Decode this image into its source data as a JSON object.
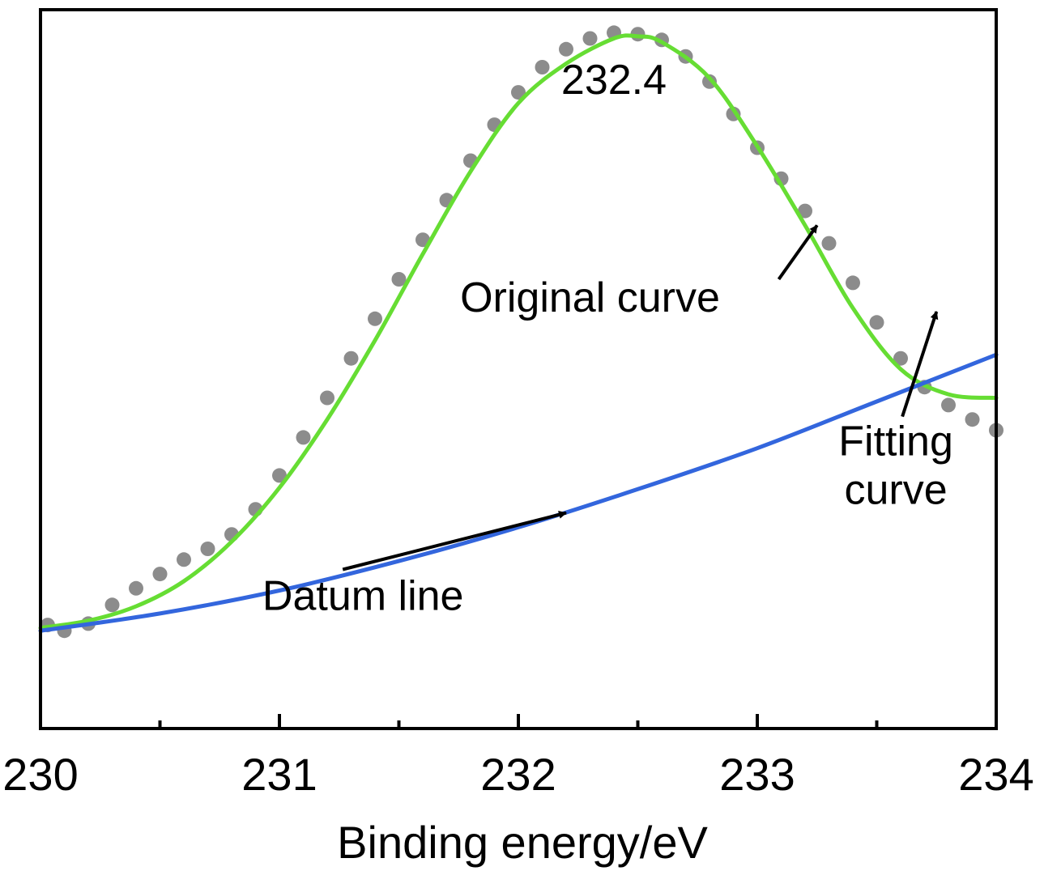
{
  "chart_data": {
    "type": "line",
    "title": "",
    "xlabel": "Binding energy/eV",
    "ylabel": "",
    "xlim": [
      230,
      234
    ],
    "ylim": [
      0,
      100
    ],
    "x_ticks": [
      "230",
      "231",
      "232",
      "233",
      "234"
    ],
    "x_minor_ticks": [
      230.5,
      231.5,
      232.5,
      233.5
    ],
    "y_tick_labels_shown": false,
    "grid": false,
    "legend": "none",
    "colors": {
      "original": "#8c8c8c",
      "fitting": "#66dd33",
      "datum": "#3366dd",
      "text": "#000000"
    },
    "series": [
      {
        "role": "original",
        "style": "markers",
        "points": [
          [
            230.03,
            14.4
          ],
          [
            230.1,
            13.6
          ],
          [
            230.2,
            14.6
          ],
          [
            230.3,
            17.2
          ],
          [
            230.4,
            19.5
          ],
          [
            230.5,
            21.5
          ],
          [
            230.6,
            23.5
          ],
          [
            230.7,
            25.0
          ],
          [
            230.8,
            27.0
          ],
          [
            230.9,
            30.5
          ],
          [
            231.0,
            35.2
          ],
          [
            231.1,
            40.5
          ],
          [
            231.2,
            46.0
          ],
          [
            231.3,
            51.5
          ],
          [
            231.4,
            57.0
          ],
          [
            231.5,
            62.5
          ],
          [
            231.6,
            68.0
          ],
          [
            231.7,
            73.5
          ],
          [
            231.8,
            79.0
          ],
          [
            231.9,
            84.0
          ],
          [
            232.0,
            88.5
          ],
          [
            232.1,
            92.0
          ],
          [
            232.2,
            94.5
          ],
          [
            232.3,
            96.0
          ],
          [
            232.4,
            96.8
          ],
          [
            232.5,
            96.6
          ],
          [
            232.6,
            95.8
          ],
          [
            232.7,
            93.5
          ],
          [
            232.8,
            90.0
          ],
          [
            232.9,
            85.5
          ],
          [
            233.0,
            80.8
          ],
          [
            233.1,
            76.5
          ],
          [
            233.2,
            72.0
          ],
          [
            233.3,
            67.5
          ],
          [
            233.4,
            62.0
          ],
          [
            233.5,
            56.5
          ],
          [
            233.6,
            51.5
          ],
          [
            233.7,
            47.5
          ],
          [
            233.8,
            45.0
          ],
          [
            233.9,
            43.0
          ],
          [
            234.0,
            41.5
          ]
        ]
      },
      {
        "role": "fitting",
        "style": "line",
        "points": [
          [
            230.0,
            14.0
          ],
          [
            230.2,
            15.0
          ],
          [
            230.4,
            17.0
          ],
          [
            230.6,
            20.5
          ],
          [
            230.8,
            26.0
          ],
          [
            231.0,
            33.5
          ],
          [
            231.2,
            43.0
          ],
          [
            231.4,
            54.0
          ],
          [
            231.6,
            66.0
          ],
          [
            231.8,
            77.5
          ],
          [
            232.0,
            87.0
          ],
          [
            232.2,
            92.5
          ],
          [
            232.4,
            96.0
          ],
          [
            232.5,
            96.3
          ],
          [
            232.6,
            95.5
          ],
          [
            232.8,
            90.5
          ],
          [
            233.0,
            81.0
          ],
          [
            233.2,
            70.0
          ],
          [
            233.4,
            58.5
          ],
          [
            233.6,
            50.0
          ],
          [
            233.8,
            46.5
          ],
          [
            234.0,
            46.0
          ]
        ]
      },
      {
        "role": "datum",
        "style": "line",
        "points": [
          [
            230.0,
            13.6
          ],
          [
            230.5,
            16.0
          ],
          [
            231.0,
            19.2
          ],
          [
            231.5,
            23.3
          ],
          [
            232.0,
            28.0
          ],
          [
            232.5,
            33.3
          ],
          [
            233.0,
            39.0
          ],
          [
            233.5,
            45.5
          ],
          [
            234.0,
            52.0
          ]
        ]
      }
    ],
    "annotations": [
      {
        "text": "232.4",
        "x": 232.4,
        "y": 88.3
      },
      {
        "text": "Original curve",
        "x": 232.3,
        "y": 58.0,
        "arrow_to": [
          233.25,
          70.0
        ]
      },
      {
        "text": "Fitting curve",
        "lines": [
          "Fitting",
          "curve"
        ],
        "x": 233.58,
        "y": 38.0,
        "arrow_to": [
          233.75,
          58.0
        ]
      },
      {
        "text": "Datum line",
        "x": 231.35,
        "y": 16.5,
        "arrow_to": [
          232.2,
          30.0
        ]
      }
    ]
  }
}
